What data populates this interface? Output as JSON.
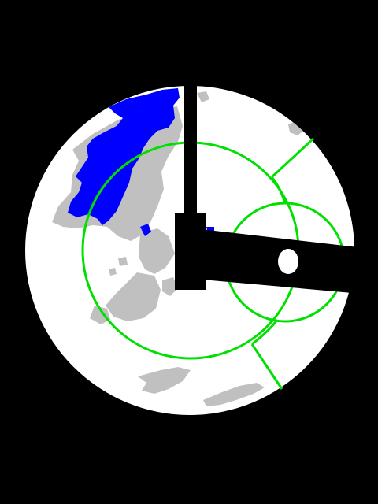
{
  "colors": {
    "background": "#000000",
    "field": "#ffffff",
    "terrain": "#c0c0c0",
    "water": "#0000ff",
    "overlay_lines": "#00e000",
    "structure": "#000000"
  },
  "icons": [
    "probe-arm-icon"
  ]
}
